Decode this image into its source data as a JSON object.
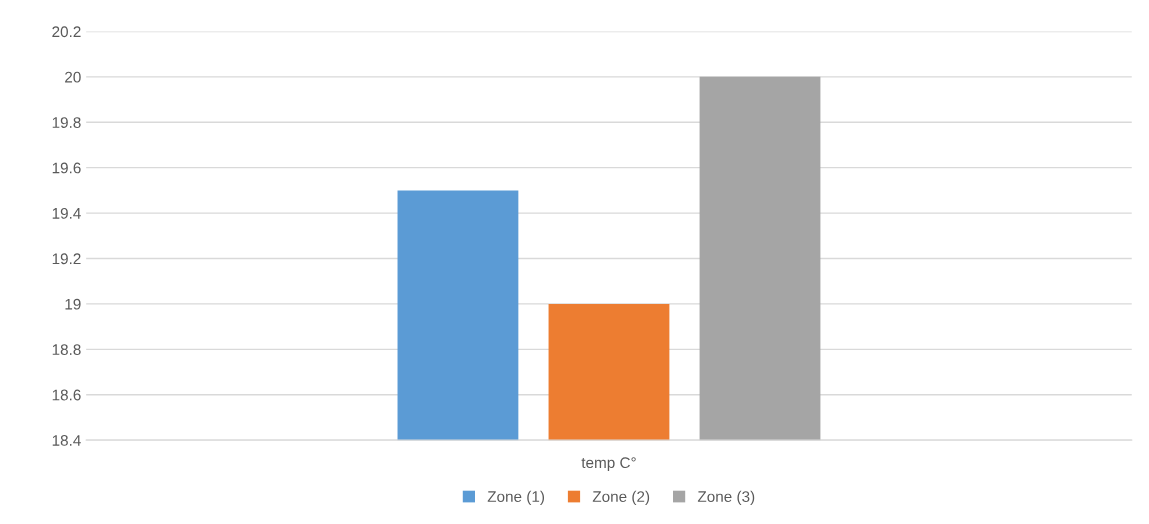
{
  "chart_data": {
    "type": "bar",
    "categories": [
      "temp C°"
    ],
    "series": [
      {
        "name": "Zone (1)",
        "color": "#5b9bd5",
        "values": [
          19.5
        ]
      },
      {
        "name": "Zone (2)",
        "color": "#ed7d31",
        "values": [
          19.0
        ]
      },
      {
        "name": "Zone (3)",
        "color": "#a5a5a5",
        "values": [
          20.0
        ]
      }
    ],
    "ylim": [
      18.4,
      20.2
    ],
    "yticks": [
      18.4,
      18.6,
      18.8,
      {
        "value": 19,
        "label": "19"
      },
      19.2,
      19.4,
      19.6,
      19.8,
      {
        "value": 20,
        "label": "20"
      },
      20.2
    ],
    "grid": "y",
    "legend": "bottom"
  }
}
